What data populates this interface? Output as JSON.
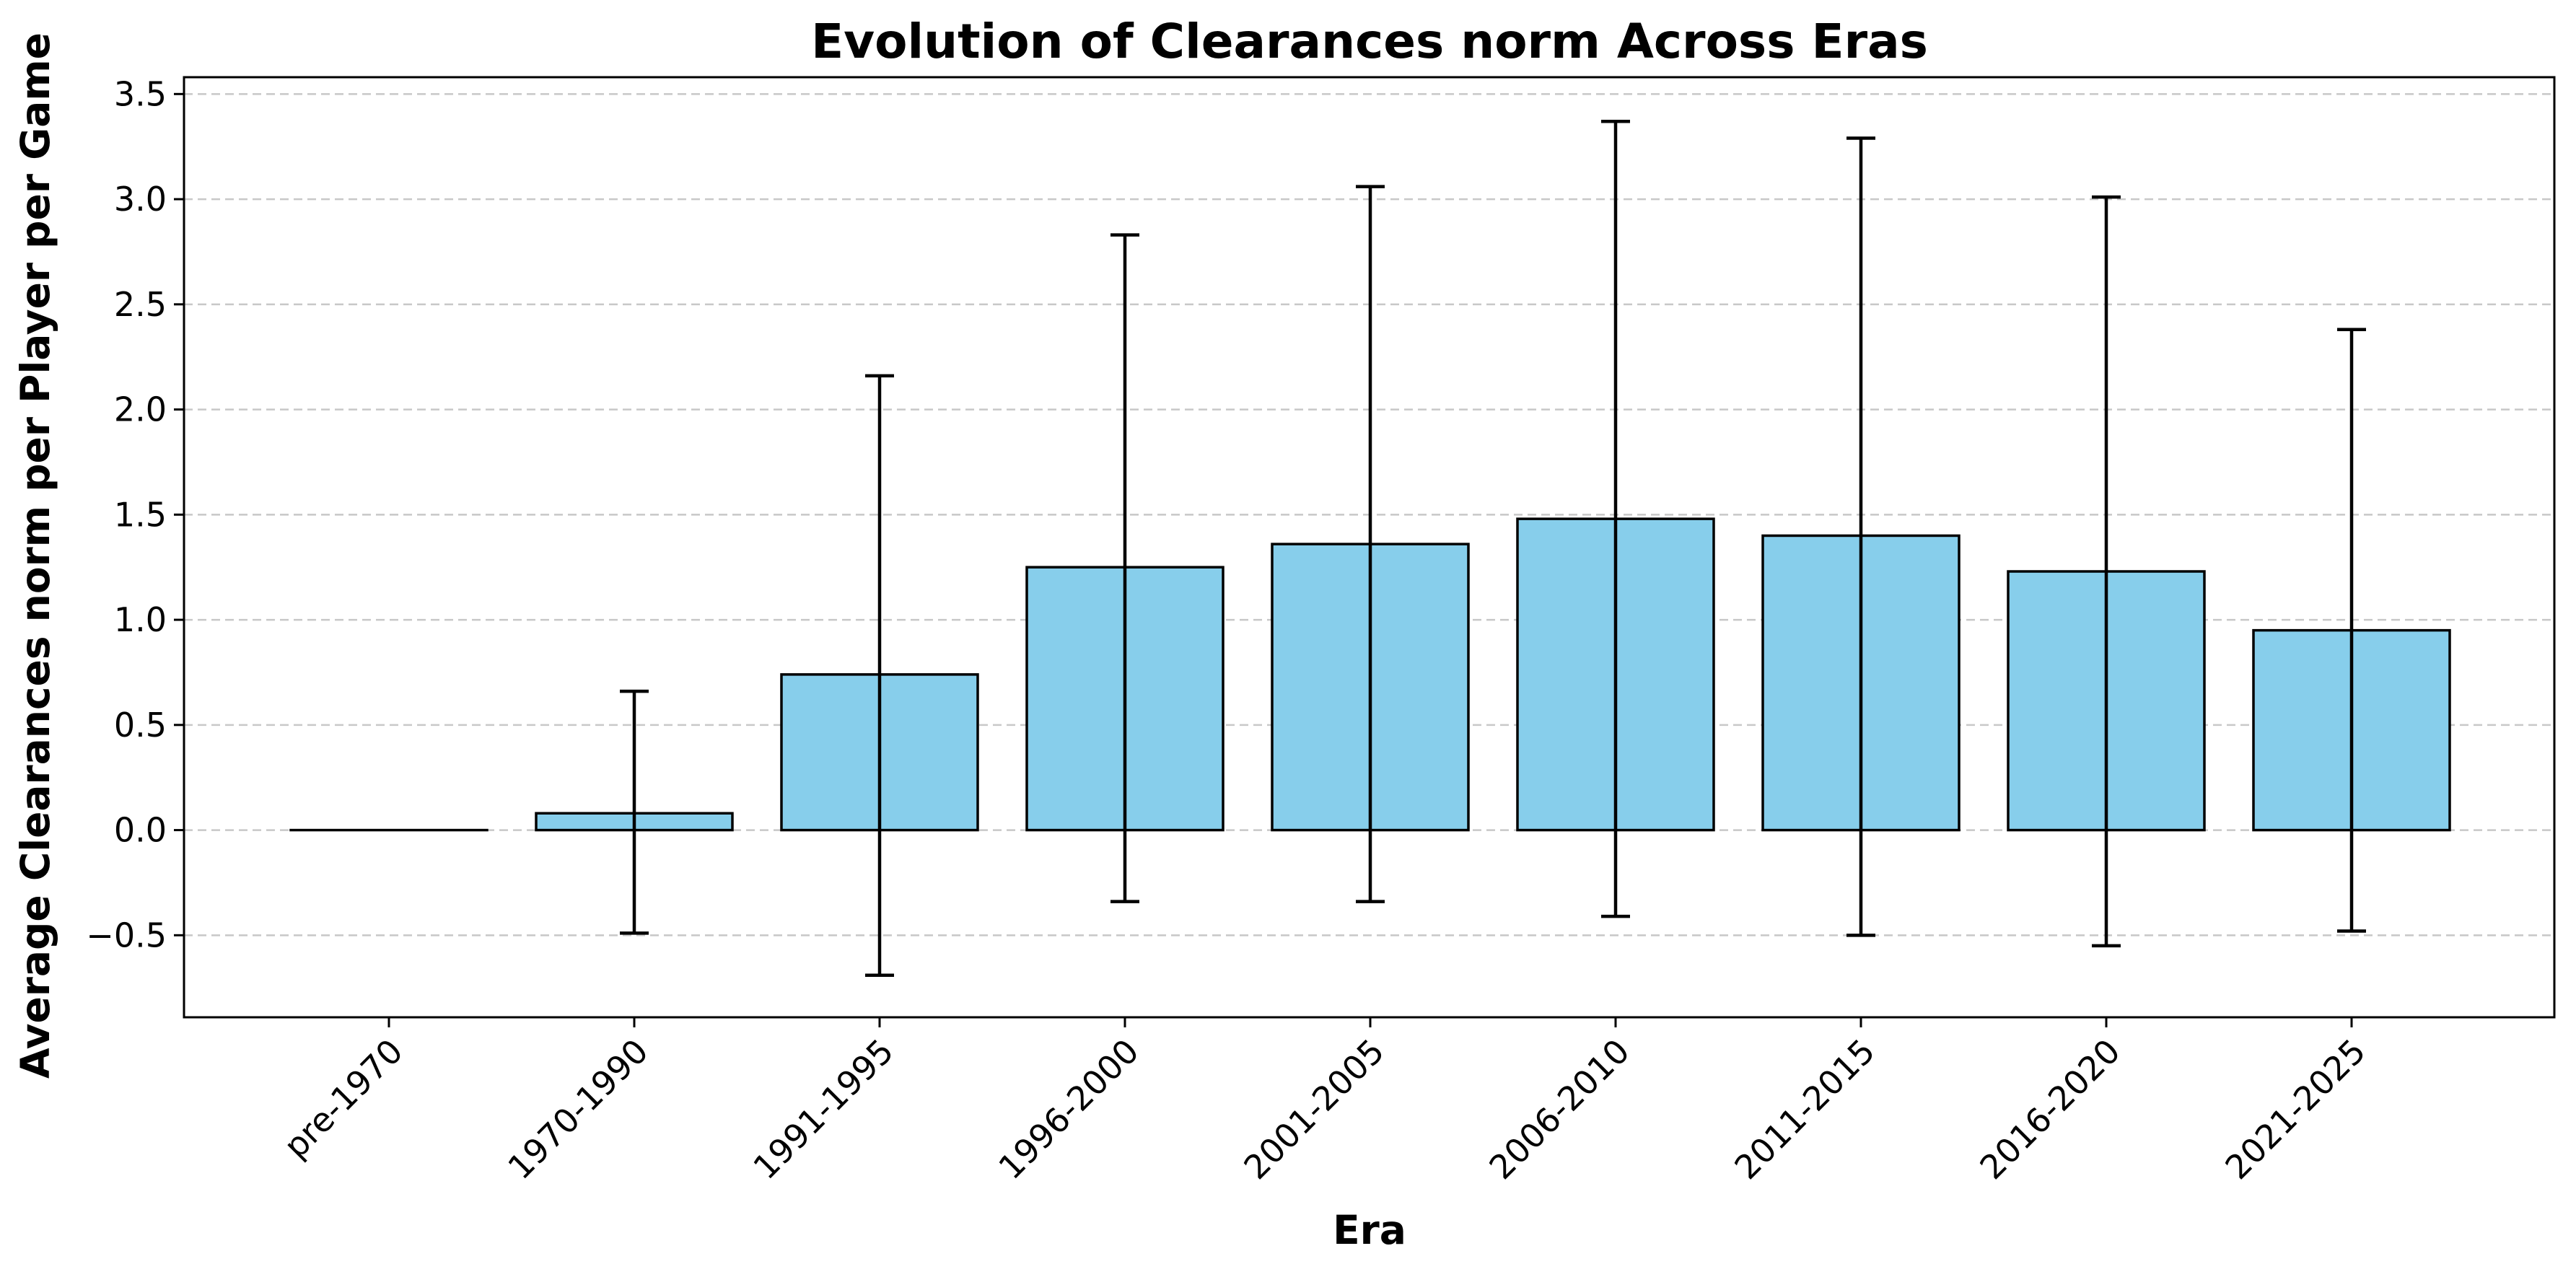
{
  "chart_data": {
    "type": "bar",
    "title": "Evolution of Clearances norm Across Eras",
    "xlabel": "Era",
    "ylabel": "Average Clearances norm per Player per Game",
    "categories": [
      "pre-1970",
      "1970-1990",
      "1991-1995",
      "1996-2000",
      "2001-2005",
      "2006-2010",
      "2011-2015",
      "2016-2020",
      "2021-2025"
    ],
    "values": [
      0.0,
      0.08,
      0.74,
      1.25,
      1.36,
      1.48,
      1.4,
      1.23,
      0.95
    ],
    "error_low": [
      0.0,
      -0.49,
      -0.69,
      -0.34,
      -0.34,
      -0.41,
      -0.5,
      -0.55,
      -0.48
    ],
    "error_high": [
      0.0,
      0.66,
      2.16,
      2.83,
      3.06,
      3.37,
      3.29,
      3.01,
      2.38
    ],
    "ylim": [
      -0.89,
      3.58
    ],
    "yticks": [
      -0.5,
      0.0,
      0.5,
      1.0,
      1.5,
      2.0,
      2.5,
      3.0,
      3.5
    ],
    "ytick_labels": [
      "−0.5",
      "0.0",
      "0.5",
      "1.0",
      "1.5",
      "2.0",
      "2.5",
      "3.0",
      "3.5"
    ],
    "grid": "y-dashed",
    "colors": {
      "bar_fill": "#87ceeb",
      "bar_edge": "#000000",
      "error_bar": "#000000",
      "grid": "#c8c8c8"
    }
  }
}
